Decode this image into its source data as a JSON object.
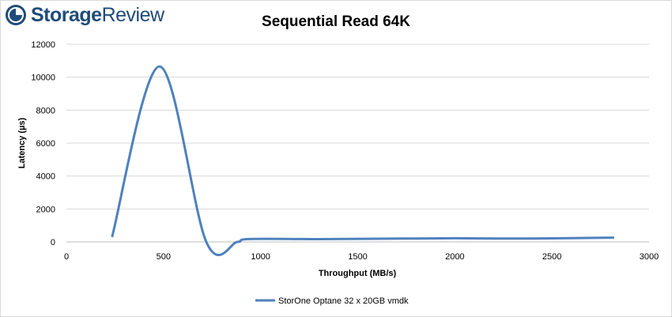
{
  "brand": {
    "name_part1": "Storage",
    "name_part2": "Review",
    "icon": "storagereview-logo-icon",
    "color": "#1f4b7a"
  },
  "chart_data": {
    "type": "line",
    "title": "Sequential Read 64K",
    "xlabel": "Throughput (MB/s)",
    "ylabel": "Latency (µs)",
    "xlim": [
      0,
      3000
    ],
    "ylim": [
      0,
      12000
    ],
    "x_ticks": [
      0,
      500,
      1000,
      1500,
      2000,
      2500,
      3000
    ],
    "y_ticks": [
      0,
      2000,
      4000,
      6000,
      8000,
      10000,
      12000
    ],
    "grid": "horizontal",
    "legend_position": "bottom",
    "series": [
      {
        "name": "StorOne Optane 32 x 20GB vmdk",
        "color": "#4f81bd",
        "smooth": true,
        "points": [
          [
            235,
            300
          ],
          [
            480,
            10650
          ],
          [
            720,
            0
          ],
          [
            880,
            0
          ],
          [
            940,
            175
          ],
          [
            1300,
            170
          ],
          [
            1600,
            190
          ],
          [
            2000,
            220
          ],
          [
            2300,
            200
          ],
          [
            2600,
            230
          ],
          [
            2820,
            260
          ]
        ]
      }
    ]
  }
}
